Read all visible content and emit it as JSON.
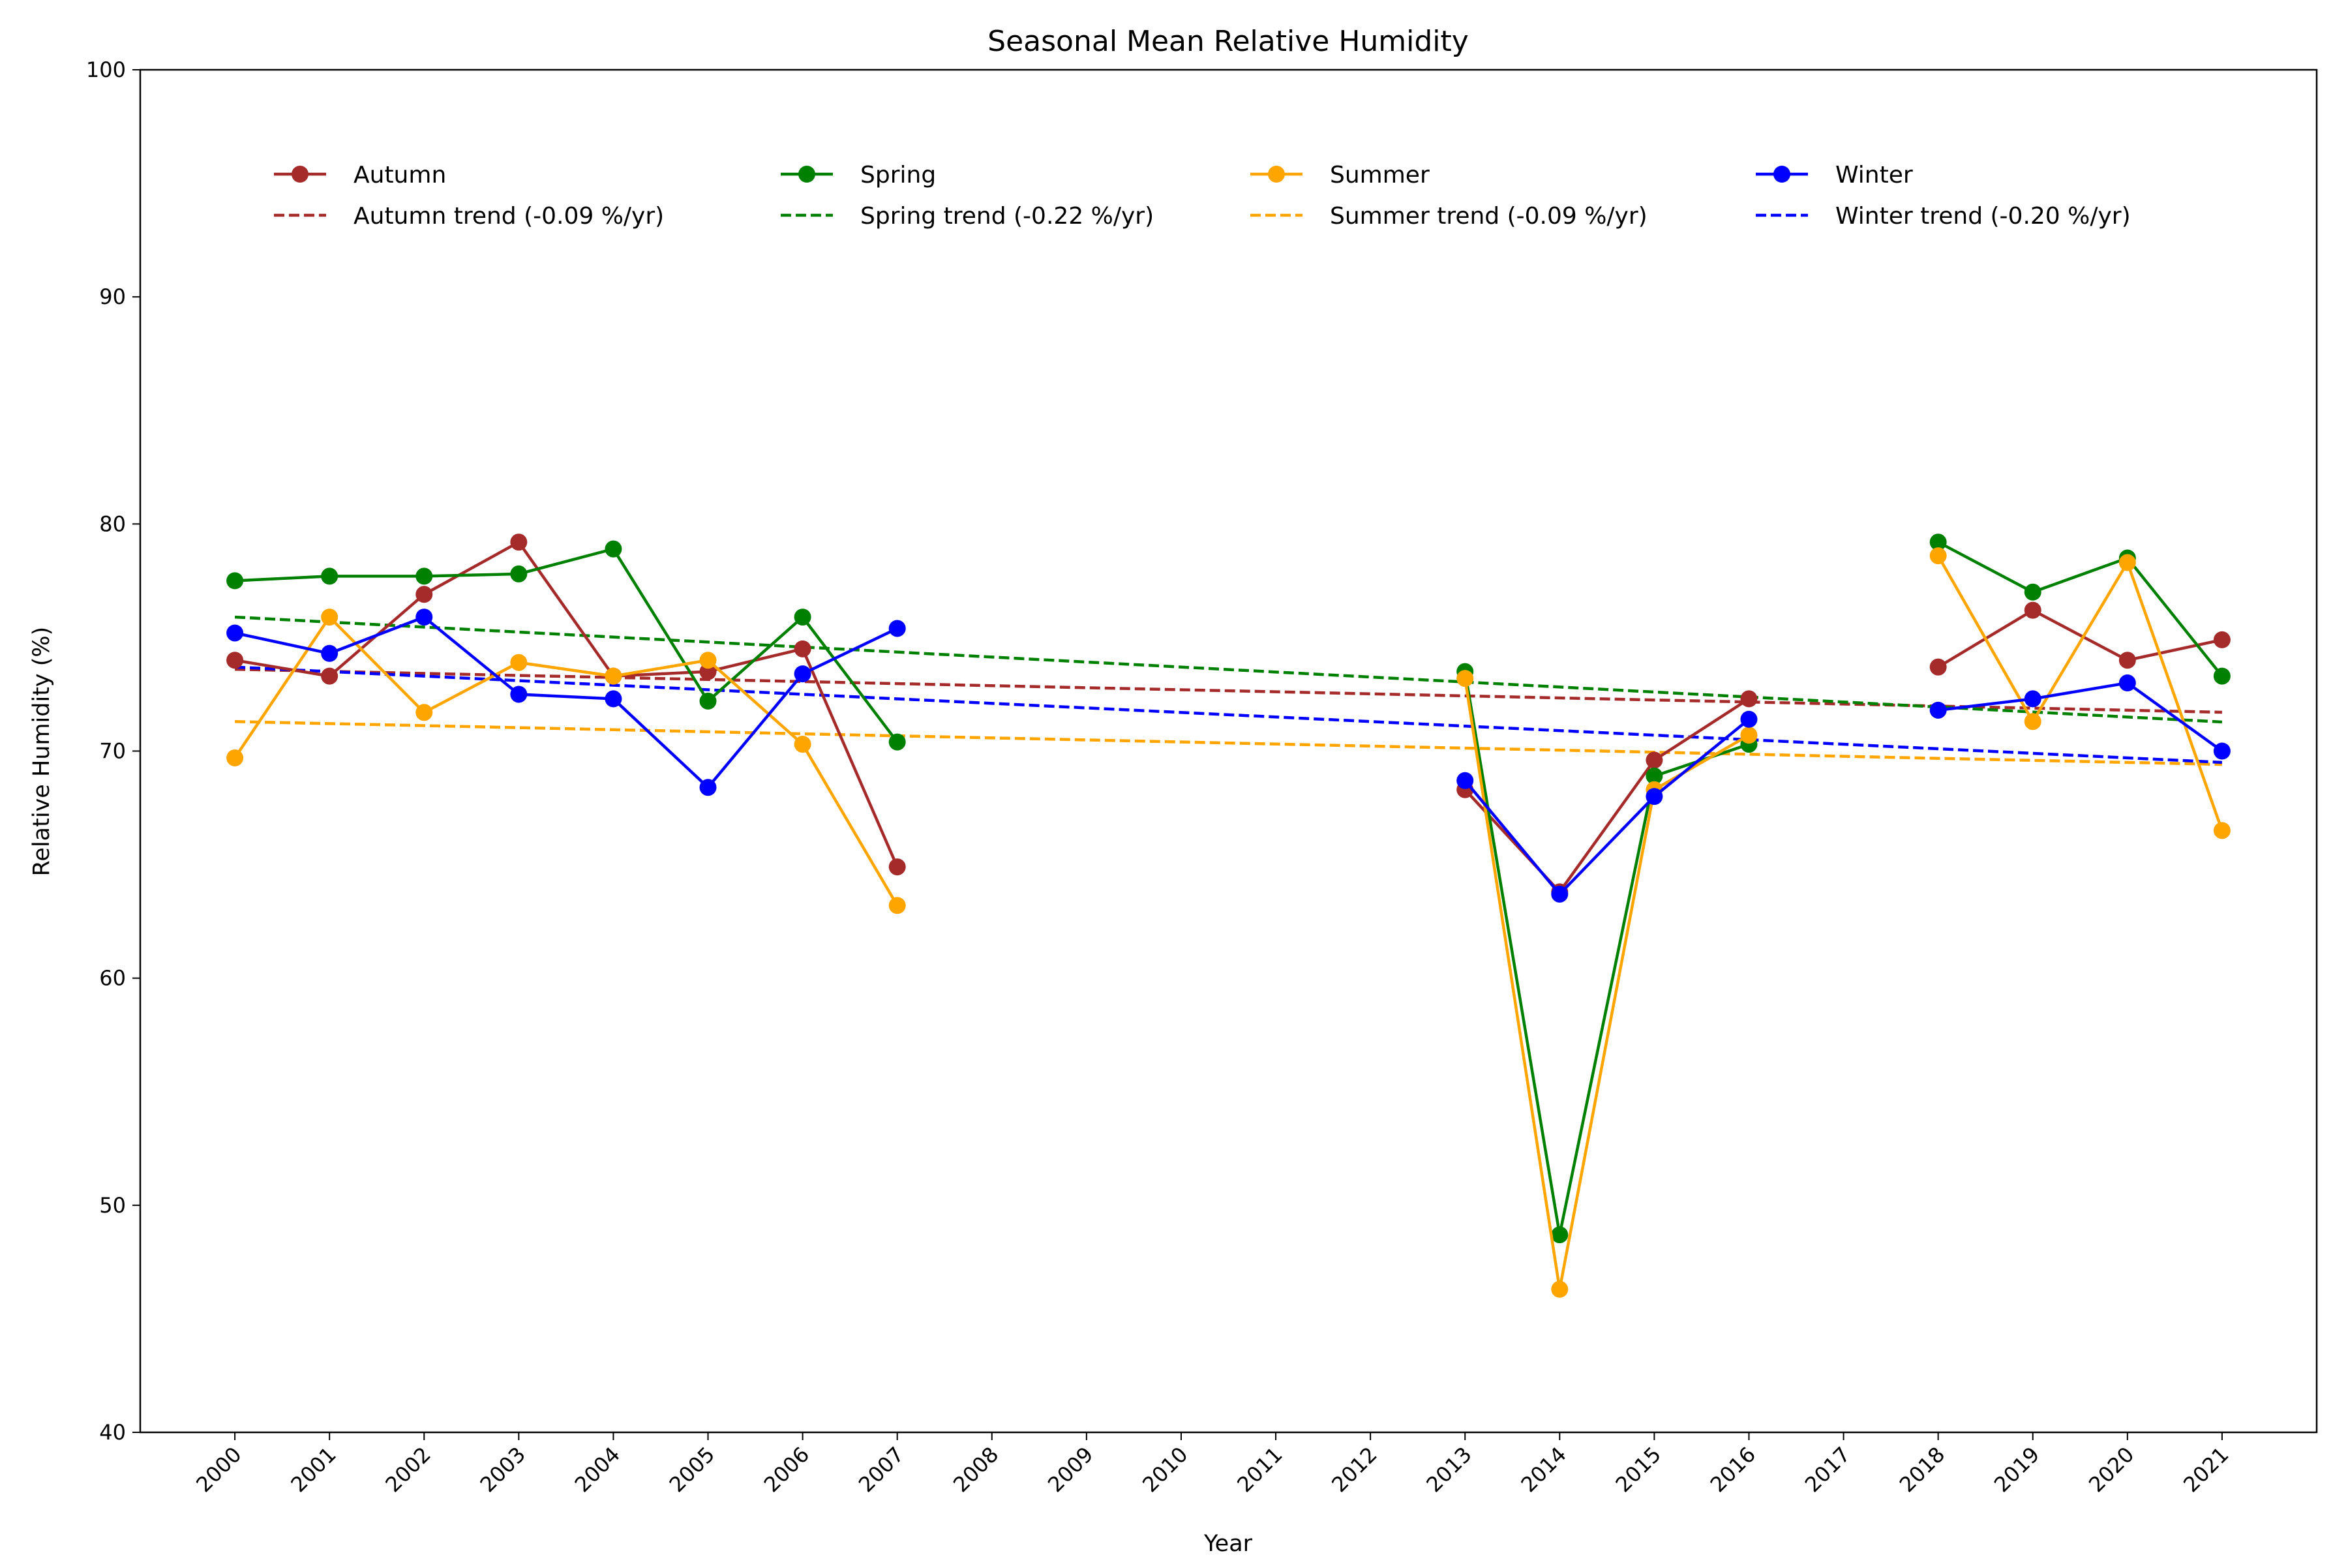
{
  "chart_data": {
    "type": "line",
    "title": "Seasonal Mean Relative Humidity",
    "xlabel": "Year",
    "ylabel": "Relative Humidity (%)",
    "xlim": [
      1999,
      2022
    ],
    "ylim": [
      40,
      100
    ],
    "xticks": [
      "2000",
      "2001",
      "2002",
      "2003",
      "2004",
      "2005",
      "2006",
      "2007",
      "2008",
      "2009",
      "2010",
      "2011",
      "2012",
      "2013",
      "2014",
      "2015",
      "2016",
      "2017",
      "2018",
      "2019",
      "2020",
      "2021"
    ],
    "yticks": [
      "40",
      "50",
      "60",
      "70",
      "80",
      "90",
      "100"
    ],
    "grid": false,
    "legend_position": "top",
    "x": [
      2000,
      2001,
      2002,
      2003,
      2004,
      2005,
      2006,
      2007,
      2008,
      2009,
      2010,
      2011,
      2012,
      2013,
      2014,
      2015,
      2016,
      2017,
      2018,
      2019,
      2020,
      2021
    ],
    "series": [
      {
        "name": "Autumn",
        "color": "#a52a2a",
        "values": [
          74.0,
          73.3,
          76.9,
          79.2,
          73.3,
          73.5,
          74.5,
          64.9,
          null,
          null,
          null,
          null,
          null,
          68.3,
          63.8,
          69.6,
          72.3,
          null,
          73.7,
          76.2,
          74.0,
          74.9
        ],
        "trend_name": "Autumn trend (-0.09 %/yr)",
        "trend_start": 73.6,
        "trend_slope": -0.09
      },
      {
        "name": "Spring",
        "color": "#008000",
        "values": [
          77.5,
          77.7,
          77.7,
          77.8,
          78.9,
          72.2,
          75.9,
          70.4,
          null,
          null,
          null,
          null,
          null,
          73.5,
          48.7,
          68.9,
          70.3,
          null,
          79.2,
          77.0,
          78.5,
          73.3
        ],
        "trend_name": "Spring trend (-0.22 %/yr)",
        "trend_start": 75.9,
        "trend_slope": -0.22
      },
      {
        "name": "Summer",
        "color": "#ffa500",
        "values": [
          69.7,
          75.9,
          71.7,
          73.9,
          73.3,
          74.0,
          70.3,
          63.2,
          null,
          null,
          null,
          null,
          null,
          73.2,
          46.3,
          68.3,
          70.7,
          null,
          78.6,
          71.3,
          78.3,
          66.5
        ],
        "trend_name": "Summer trend (-0.09 %/yr)",
        "trend_start": 71.3,
        "trend_slope": -0.09
      },
      {
        "name": "Winter",
        "color": "#0000ff",
        "values": [
          75.2,
          74.3,
          75.9,
          72.5,
          72.3,
          68.4,
          73.4,
          75.4,
          null,
          null,
          null,
          null,
          null,
          68.7,
          63.7,
          68.0,
          71.4,
          null,
          71.8,
          72.3,
          73.0,
          70.0
        ],
        "trend_name": "Winter trend (-0.20 %/yr)",
        "trend_start": 73.7,
        "trend_slope": -0.2
      }
    ]
  }
}
